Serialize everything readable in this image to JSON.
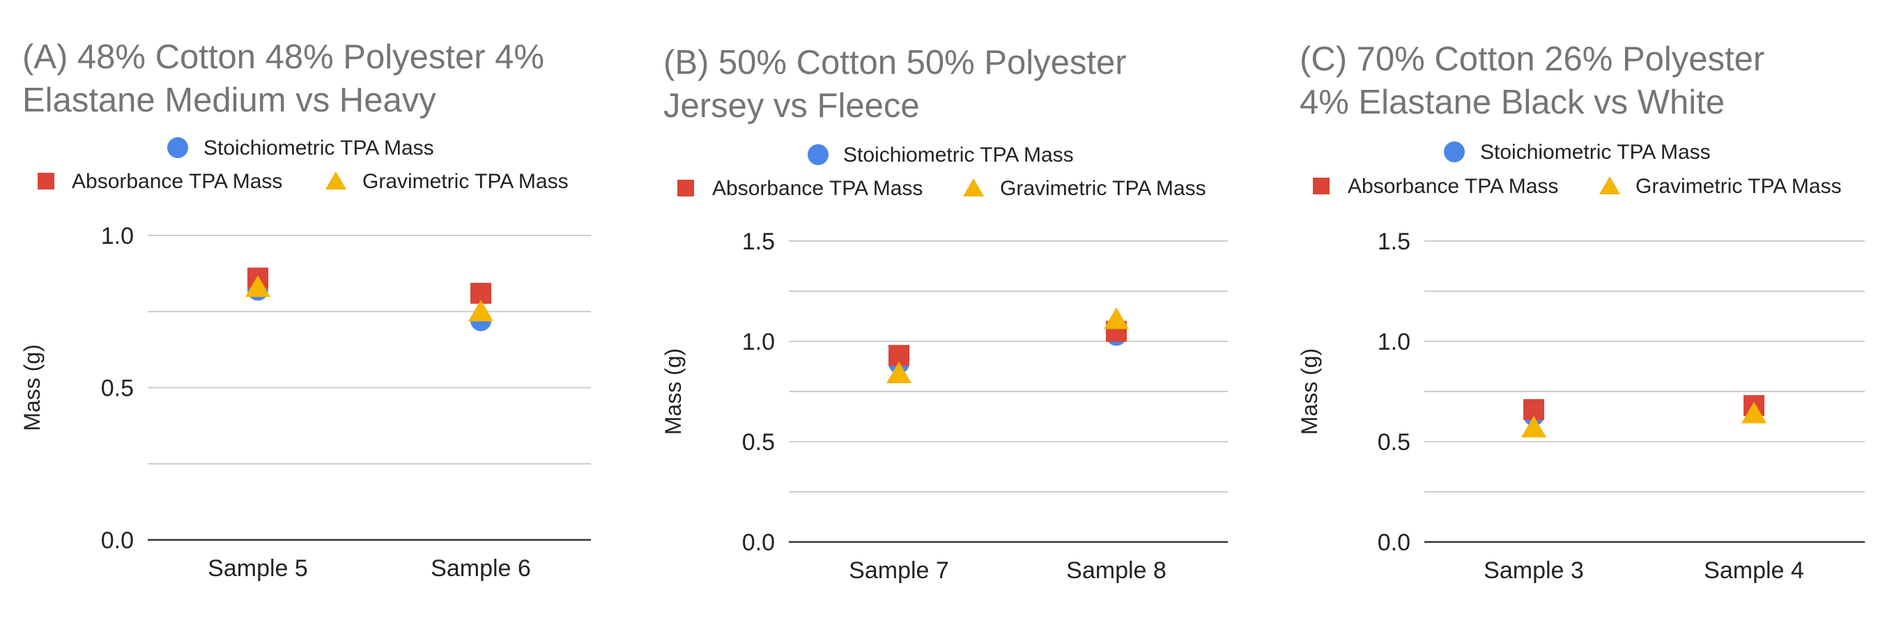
{
  "colors": {
    "stoichiometric": "#4a86e8",
    "absorbance": "#db4437",
    "gravimetric": "#f4b400",
    "gridline": "#cccccc",
    "baseline": "#333333",
    "title": "#757575"
  },
  "chart_data": [
    {
      "type": "scatter",
      "title_lines": [
        "(A)  48% Cotton 48% Polyester 4%",
        "Elastane Medium vs Heavy"
      ],
      "ylabel": "Mass (g)",
      "xlabel": "",
      "categories": [
        "Sample 5",
        "Sample 6"
      ],
      "ylim": [
        0,
        1.0
      ],
      "yticks": [
        0.0,
        0.5,
        1.0
      ],
      "yticklabels": [
        "0.0",
        "0.5",
        "1.0"
      ],
      "minor_gridlines": [
        0.25,
        0.75
      ],
      "legend_position": "top",
      "series": [
        {
          "name": "Stoichiometric TPA Mass",
          "marker": "circle",
          "values": [
            0.82,
            0.72
          ]
        },
        {
          "name": "Absorbance TPA Mass",
          "marker": "square",
          "values": [
            0.86,
            0.81
          ]
        },
        {
          "name": "Gravimetric TPA Mass",
          "marker": "triangle",
          "values": [
            0.83,
            0.75
          ]
        }
      ]
    },
    {
      "type": "scatter",
      "title_lines": [
        "(B)  50% Cotton 50% Polyester",
        "Jersey vs Fleece"
      ],
      "ylabel": "Mass (g)",
      "xlabel": "",
      "categories": [
        "Sample 7",
        "Sample 8"
      ],
      "ylim": [
        0,
        1.5
      ],
      "yticks": [
        0.0,
        0.5,
        1.0,
        1.5
      ],
      "yticklabels": [
        "0.0",
        "0.5",
        "1.0",
        "1.5"
      ],
      "minor_gridlines": [
        0.25,
        0.75,
        1.25
      ],
      "legend_position": "top",
      "series": [
        {
          "name": "Stoichiometric TPA Mass",
          "marker": "circle",
          "values": [
            0.89,
            1.03
          ]
        },
        {
          "name": "Absorbance TPA Mass",
          "marker": "square",
          "values": [
            0.93,
            1.05
          ]
        },
        {
          "name": "Gravimetric TPA Mass",
          "marker": "triangle",
          "values": [
            0.84,
            1.11
          ]
        }
      ]
    },
    {
      "type": "scatter",
      "title_lines": [
        "(C)  70% Cotton 26% Polyester",
        "4% Elastane Black vs White"
      ],
      "ylabel": "Mass (g)",
      "xlabel": "",
      "categories": [
        "Sample 3",
        "Sample 4"
      ],
      "ylim": [
        0,
        1.5
      ],
      "yticks": [
        0.0,
        0.5,
        1.0,
        1.5
      ],
      "yticklabels": [
        "0.0",
        "0.5",
        "1.0",
        "1.5"
      ],
      "minor_gridlines": [
        0.25,
        0.75,
        1.25
      ],
      "legend_position": "top",
      "series": [
        {
          "name": "Stoichiometric TPA Mass",
          "marker": "circle",
          "values": [
            0.63,
            0.66
          ]
        },
        {
          "name": "Absorbance TPA Mass",
          "marker": "square",
          "values": [
            0.66,
            0.68
          ]
        },
        {
          "name": "Gravimetric TPA Mass",
          "marker": "triangle",
          "values": [
            0.57,
            0.64
          ]
        }
      ]
    }
  ]
}
